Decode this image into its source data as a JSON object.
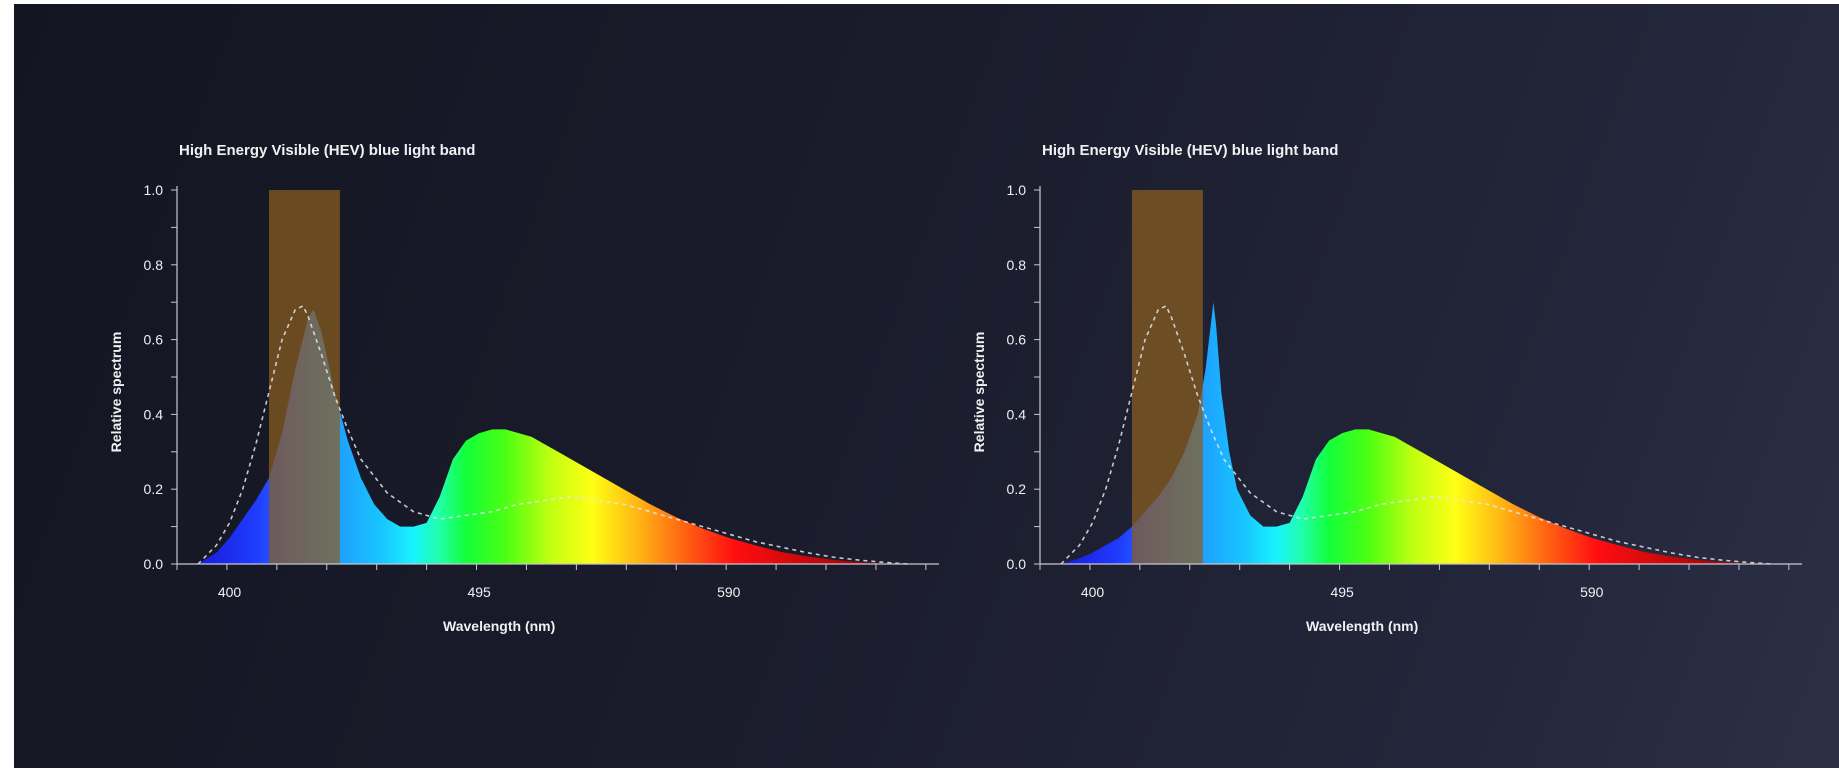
{
  "colors": {
    "background": "#1a1c2c",
    "axis": "#c8c8d0",
    "hev_band": "#8a5e1e",
    "reference_curve": "#e6e6ea"
  },
  "chart_data": [
    {
      "type": "area",
      "title": "High Energy Visible (HEV) blue light band",
      "xlabel": "Wavelength (nm)",
      "ylabel": "Relative spectrum",
      "xlim": [
        380,
        670
      ],
      "ylim": [
        0,
        1.0
      ],
      "xticks": [
        "400",
        "495",
        "590"
      ],
      "yticks": [
        "0.0",
        "0.2",
        "0.4",
        "0.6",
        "0.8",
        "1.0"
      ],
      "grid": false,
      "highlight_band": {
        "x": [
          415,
          442
        ],
        "label": "High Energy Visible (HEV) blue light band"
      },
      "series": [
        {
          "style": "filled-spectrum-gradient",
          "x": [
            388,
            395,
            400,
            405,
            410,
            415,
            420,
            425,
            430,
            432,
            435,
            440,
            445,
            450,
            455,
            460,
            465,
            470,
            475,
            480,
            485,
            490,
            495,
            500,
            505,
            510,
            515,
            520,
            525,
            530,
            540,
            550,
            560,
            570,
            580,
            590,
            600,
            610,
            620,
            630,
            640,
            650,
            658
          ],
          "y": [
            0.0,
            0.03,
            0.07,
            0.12,
            0.17,
            0.23,
            0.35,
            0.52,
            0.66,
            0.68,
            0.62,
            0.46,
            0.33,
            0.23,
            0.16,
            0.12,
            0.1,
            0.1,
            0.11,
            0.18,
            0.28,
            0.33,
            0.35,
            0.36,
            0.36,
            0.35,
            0.34,
            0.32,
            0.3,
            0.28,
            0.24,
            0.2,
            0.16,
            0.125,
            0.095,
            0.07,
            0.05,
            0.032,
            0.02,
            0.011,
            0.005,
            0.002,
            0.0
          ]
        },
        {
          "style": "dashed-reference",
          "x": [
            388,
            395,
            400,
            405,
            410,
            415,
            420,
            425,
            428,
            430,
            435,
            440,
            445,
            450,
            460,
            470,
            480,
            490,
            500,
            510,
            520,
            530,
            540,
            550,
            560,
            570,
            580,
            590,
            600,
            610,
            620,
            630,
            640,
            650,
            658
          ],
          "y": [
            0.0,
            0.05,
            0.11,
            0.2,
            0.32,
            0.46,
            0.6,
            0.68,
            0.69,
            0.66,
            0.56,
            0.45,
            0.36,
            0.28,
            0.19,
            0.14,
            0.12,
            0.13,
            0.14,
            0.16,
            0.17,
            0.18,
            0.17,
            0.16,
            0.14,
            0.12,
            0.1,
            0.08,
            0.06,
            0.045,
            0.03,
            0.018,
            0.01,
            0.004,
            0.0
          ]
        }
      ]
    },
    {
      "type": "area",
      "title": "High Energy Visible (HEV) blue light band",
      "xlabel": "Wavelength (nm)",
      "ylabel": "Relative spectrum",
      "xlim": [
        380,
        670
      ],
      "ylim": [
        0,
        1.0
      ],
      "xticks": [
        "400",
        "495",
        "590"
      ],
      "yticks": [
        "0.0",
        "0.2",
        "0.4",
        "0.6",
        "0.8",
        "1.0"
      ],
      "grid": false,
      "highlight_band": {
        "x": [
          415,
          442
        ],
        "label": "High Energy Visible (HEV) blue light band"
      },
      "series": [
        {
          "style": "filled-spectrum-gradient",
          "x": [
            388,
            395,
            400,
            405,
            410,
            415,
            420,
            425,
            430,
            435,
            440,
            443,
            445,
            446,
            447,
            449,
            452,
            455,
            460,
            465,
            470,
            475,
            480,
            485,
            490,
            495,
            500,
            505,
            510,
            515,
            520,
            525,
            530,
            540,
            550,
            560,
            570,
            580,
            590,
            600,
            610,
            620,
            630,
            640,
            650,
            658
          ],
          "y": [
            0.0,
            0.015,
            0.03,
            0.05,
            0.07,
            0.1,
            0.14,
            0.18,
            0.23,
            0.3,
            0.4,
            0.52,
            0.64,
            0.7,
            0.64,
            0.46,
            0.3,
            0.2,
            0.13,
            0.1,
            0.1,
            0.11,
            0.18,
            0.28,
            0.33,
            0.35,
            0.36,
            0.36,
            0.35,
            0.34,
            0.32,
            0.3,
            0.28,
            0.24,
            0.2,
            0.16,
            0.125,
            0.095,
            0.07,
            0.05,
            0.032,
            0.02,
            0.011,
            0.005,
            0.002,
            0.0
          ]
        },
        {
          "style": "dashed-reference",
          "x": [
            388,
            395,
            400,
            405,
            410,
            415,
            420,
            425,
            428,
            430,
            435,
            440,
            445,
            450,
            460,
            470,
            480,
            490,
            500,
            510,
            520,
            530,
            540,
            550,
            560,
            570,
            580,
            590,
            600,
            610,
            620,
            630,
            640,
            650,
            658
          ],
          "y": [
            0.0,
            0.05,
            0.11,
            0.2,
            0.32,
            0.46,
            0.6,
            0.68,
            0.69,
            0.66,
            0.56,
            0.45,
            0.36,
            0.28,
            0.19,
            0.14,
            0.12,
            0.13,
            0.14,
            0.16,
            0.17,
            0.18,
            0.17,
            0.16,
            0.14,
            0.12,
            0.1,
            0.08,
            0.06,
            0.045,
            0.03,
            0.018,
            0.01,
            0.004,
            0.0
          ]
        }
      ]
    }
  ]
}
